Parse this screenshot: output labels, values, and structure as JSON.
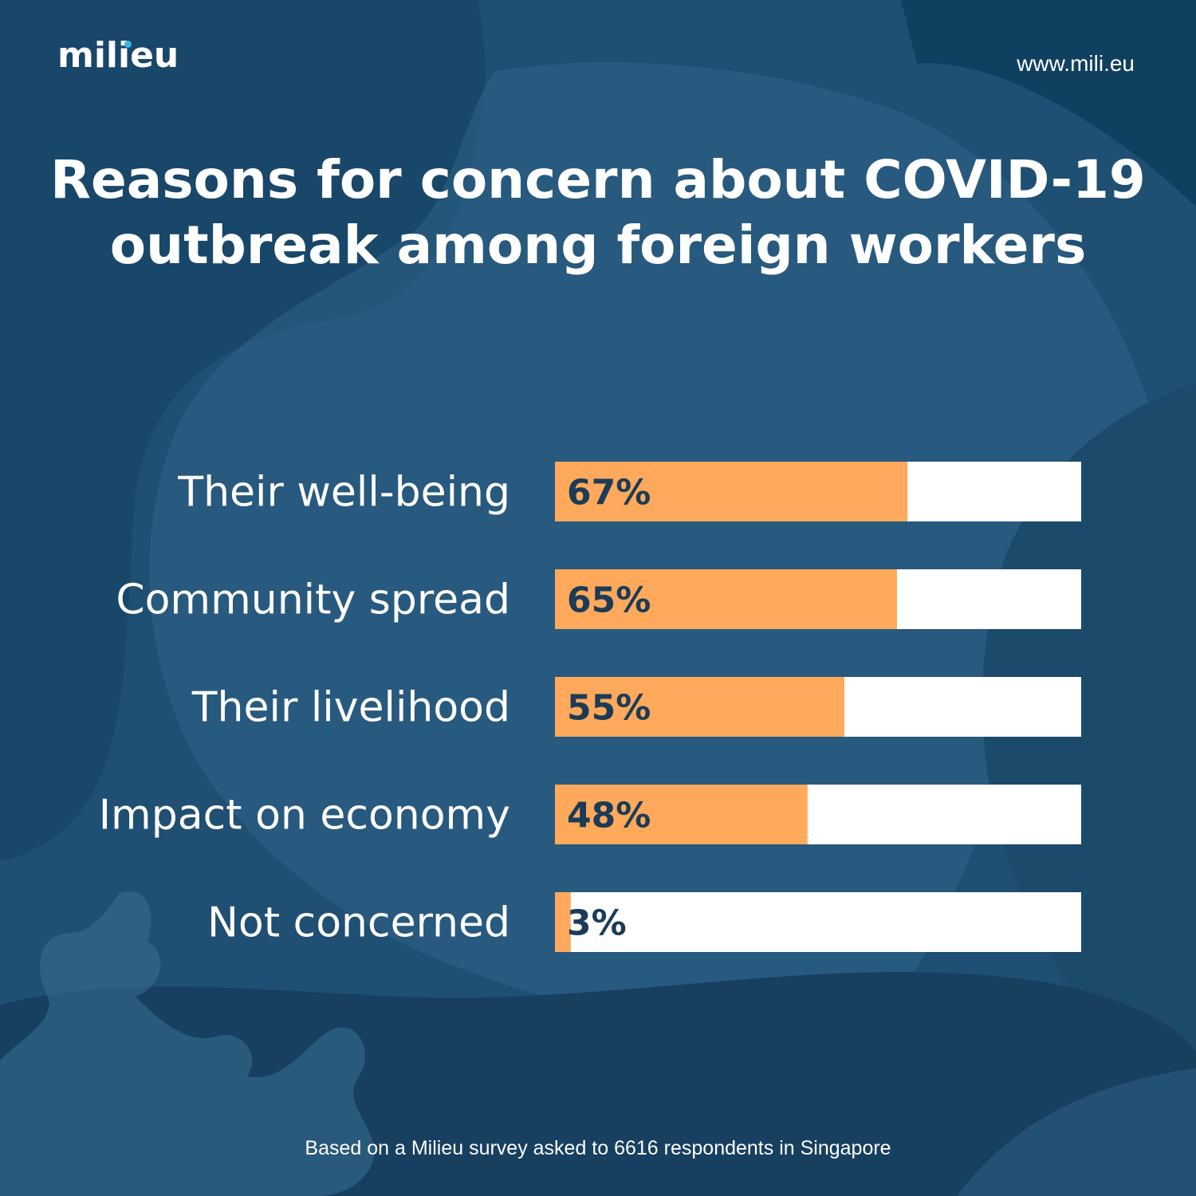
{
  "brand": {
    "logo_text": "milieu",
    "url": "www.mili.eu"
  },
  "colors": {
    "background": "#1f4f72",
    "bar_fill": "#fea95b",
    "bar_track": "#ffffff",
    "value_text": "#1b3b56"
  },
  "chart_data": {
    "type": "bar",
    "orientation": "horizontal",
    "title_lines": [
      "Reasons for concern about COVID-19",
      "outbreak among foreign workers"
    ],
    "categories": [
      "Their well-being",
      "Community spread",
      "Their livelihood",
      "Impact on economy",
      "Not concerned"
    ],
    "values": [
      67,
      65,
      55,
      48,
      3
    ],
    "value_labels": [
      "67%",
      "65%",
      "55%",
      "48%",
      "3%"
    ],
    "unit": "%",
    "xlim": [
      0,
      100
    ],
    "grid": false,
    "legend": "none"
  },
  "footnote": "Based on a Milieu survey asked to 6616 respondents in Singapore"
}
